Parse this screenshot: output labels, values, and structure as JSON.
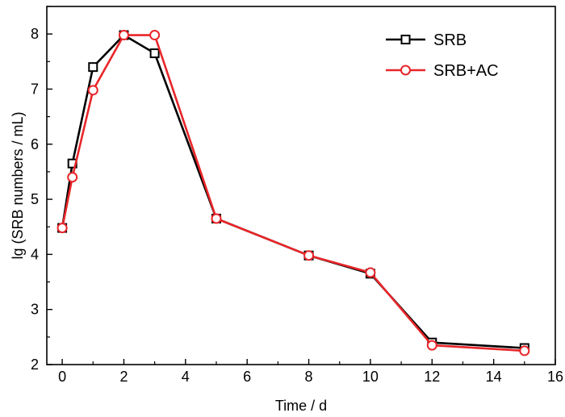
{
  "chart_data": {
    "type": "line",
    "title": "",
    "xlabel": "Time / d",
    "ylabel": "lg (SRB numbers / mL)",
    "xlim": [
      -0.5,
      16
    ],
    "ylim": [
      2,
      8.5
    ],
    "xticks": [
      0,
      2,
      4,
      6,
      8,
      10,
      12,
      14,
      16
    ],
    "yticks": [
      2,
      3,
      4,
      5,
      6,
      7,
      8
    ],
    "grid": false,
    "legend_position": "top-right",
    "series": [
      {
        "name": "SRB",
        "color": "#000000",
        "marker": "square",
        "x": [
          0,
          0.33,
          1,
          2,
          3,
          5,
          8,
          10,
          12,
          15
        ],
        "y": [
          4.48,
          5.65,
          7.4,
          7.98,
          7.65,
          4.65,
          3.98,
          3.65,
          2.4,
          2.3
        ]
      },
      {
        "name": "SRB+AC",
        "color": "#e8262a",
        "marker": "circle",
        "x": [
          0,
          0.33,
          1,
          2,
          3,
          5,
          8,
          10,
          12,
          15
        ],
        "y": [
          4.48,
          5.4,
          6.98,
          7.98,
          7.98,
          4.65,
          3.98,
          3.67,
          2.35,
          2.25
        ]
      }
    ]
  }
}
